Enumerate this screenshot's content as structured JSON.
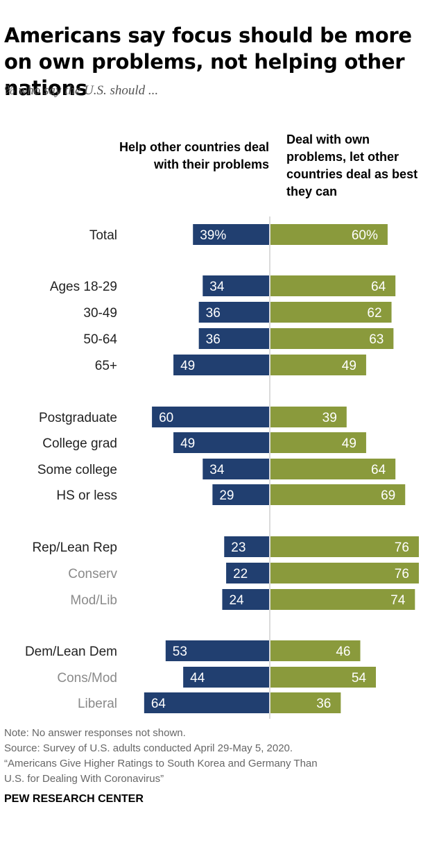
{
  "header": {
    "title": "Americans say focus should be more on own problems, not helping other nations",
    "subtitle": "% who say the U.S. should ..."
  },
  "columns": {
    "left": "Help other countries deal with their problems",
    "right": "Deal with own problems, let other countries deal as best they can"
  },
  "colors": {
    "left_bar": "#213f70",
    "right_bar": "#8a9a3c",
    "subgroup_label": "#8a8a8a",
    "axis_line": "#cfcfcf"
  },
  "chart_data": {
    "type": "bar",
    "orientation": "horizontal-diverging",
    "categories": [
      "Total",
      "Ages 18-29",
      "30-49",
      "50-64",
      "65+",
      "Postgraduate",
      "College grad",
      "Some college",
      "HS or less",
      "Rep/Lean Rep",
      "Conserv",
      "Mod/Lib",
      "Dem/Lean Dem",
      "Cons/Mod",
      "Liberal"
    ],
    "subgroups": [
      false,
      false,
      false,
      false,
      false,
      false,
      false,
      false,
      false,
      false,
      true,
      true,
      false,
      true,
      true
    ],
    "series": [
      {
        "name": "Help other countries deal with their problems",
        "values": [
          39,
          34,
          36,
          36,
          49,
          60,
          49,
          34,
          29,
          23,
          22,
          24,
          53,
          44,
          64
        ]
      },
      {
        "name": "Deal with own problems, let other countries deal as best they can",
        "values": [
          60,
          64,
          62,
          63,
          49,
          39,
          49,
          64,
          69,
          76,
          76,
          74,
          46,
          54,
          36
        ]
      }
    ],
    "value_suffix_first_row": "%"
  },
  "footer": {
    "note": "Note: No answer responses not shown.",
    "source": "Source: Survey of U.S. adults conducted April 29-May 5, 2020.",
    "report_line1": "“Americans Give Higher Ratings to South Korea and Germany Than",
    "report_line2": "U.S. for Dealing With Coronavirus”",
    "brand": "PEW RESEARCH CENTER"
  }
}
